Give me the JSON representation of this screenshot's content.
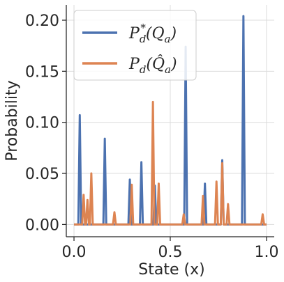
{
  "chart_data": {
    "type": "line",
    "title": "",
    "xlabel": "State (x)",
    "ylabel": "Probability",
    "xlim": [
      -0.04,
      1.04
    ],
    "ylim": [
      -0.012,
      0.215
    ],
    "xticks": [
      0.0,
      0.5,
      1.0
    ],
    "xtick_labels": [
      "0.0",
      "0.5",
      "1.0"
    ],
    "yticks": [
      0.0,
      0.05,
      0.1,
      0.15,
      0.2
    ],
    "ytick_labels": [
      "0.00",
      "0.05",
      "0.10",
      "0.15",
      "0.20"
    ],
    "grid": true,
    "legend_position": "top-left",
    "series": [
      {
        "name": "P_d^*(Q_a)",
        "legend_base": "P",
        "legend_sub": "d",
        "legend_sup": "*",
        "legend_arg": "(Q",
        "legend_arg_sub": "a",
        "legend_close": ")",
        "color": "#4c72b0",
        "peaks": [
          {
            "x": 0.03,
            "y": 0.107
          },
          {
            "x": 0.16,
            "y": 0.084
          },
          {
            "x": 0.29,
            "y": 0.044
          },
          {
            "x": 0.35,
            "y": 0.061
          },
          {
            "x": 0.42,
            "y": 0.038
          },
          {
            "x": 0.58,
            "y": 0.174
          },
          {
            "x": 0.68,
            "y": 0.04
          },
          {
            "x": 0.77,
            "y": 0.063
          },
          {
            "x": 0.88,
            "y": 0.204
          }
        ]
      },
      {
        "name": "P_d(Q̂_a)",
        "legend_base": "P",
        "legend_sub": "d",
        "legend_arg": "(Q̂",
        "legend_arg_sub": "a",
        "legend_close": ")",
        "color": "#dd8452",
        "peaks": [
          {
            "x": 0.05,
            "y": 0.029
          },
          {
            "x": 0.07,
            "y": 0.024
          },
          {
            "x": 0.09,
            "y": 0.05
          },
          {
            "x": 0.21,
            "y": 0.012
          },
          {
            "x": 0.3,
            "y": 0.039
          },
          {
            "x": 0.41,
            "y": 0.12
          },
          {
            "x": 0.44,
            "y": 0.04
          },
          {
            "x": 0.57,
            "y": 0.01
          },
          {
            "x": 0.67,
            "y": 0.028
          },
          {
            "x": 0.74,
            "y": 0.042
          },
          {
            "x": 0.77,
            "y": 0.06
          },
          {
            "x": 0.8,
            "y": 0.02
          },
          {
            "x": 0.98,
            "y": 0.01
          }
        ]
      }
    ]
  }
}
